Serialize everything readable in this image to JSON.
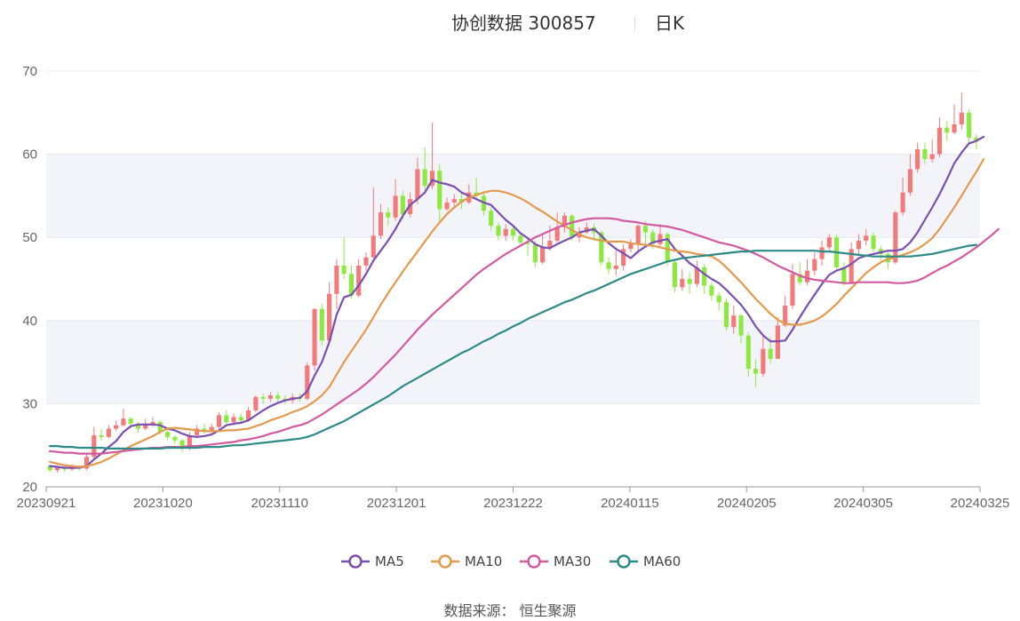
{
  "title": {
    "main": "协创数据 300857",
    "period": "日K"
  },
  "source": "数据来源： 恒生聚源",
  "colors": {
    "up": "#f47a7a",
    "down": "#8ee842",
    "MA5": "#7b4fb0",
    "MA10": "#e39a4e",
    "MA30": "#d25aa0",
    "MA60": "#2e8a87",
    "band": "#f3f4fa",
    "axis": "#999999"
  },
  "chart_data": {
    "type": "candlestick",
    "ylim": [
      20,
      70
    ],
    "yticks": [
      "20",
      "30",
      "40",
      "50",
      "60",
      "70"
    ],
    "xticks": [
      "20230921",
      "20231020",
      "20231110",
      "20231201",
      "20231222",
      "20240115",
      "20240205",
      "20240305",
      "20240325"
    ],
    "candles": [
      [
        22.5,
        22.0,
        22.6,
        21.8
      ],
      [
        22.0,
        22.3,
        22.6,
        21.7
      ],
      [
        22.3,
        22.1,
        22.5,
        21.8
      ],
      [
        22.1,
        22.4,
        22.7,
        21.9
      ],
      [
        22.4,
        22.2,
        22.6,
        21.9
      ],
      [
        22.2,
        23.6,
        24.0,
        22.0
      ],
      [
        23.6,
        26.2,
        27.2,
        23.4
      ],
      [
        26.2,
        26.0,
        27.0,
        25.6
      ],
      [
        26.0,
        27.0,
        27.4,
        25.8
      ],
      [
        27.0,
        27.4,
        28.0,
        26.7
      ],
      [
        27.4,
        28.2,
        29.4,
        27.2
      ],
      [
        28.2,
        27.6,
        28.4,
        27.0
      ],
      [
        27.6,
        27.0,
        27.8,
        26.5
      ],
      [
        27.0,
        27.5,
        28.2,
        26.8
      ],
      [
        27.5,
        27.8,
        28.4,
        27.2
      ],
      [
        27.8,
        26.6,
        28.0,
        26.3
      ],
      [
        26.6,
        26.0,
        26.8,
        25.6
      ],
      [
        26.0,
        25.6,
        26.2,
        25.2
      ],
      [
        25.6,
        24.6,
        25.8,
        24.2
      ],
      [
        24.6,
        26.2,
        26.6,
        24.4
      ],
      [
        26.2,
        27.0,
        27.4,
        25.9
      ],
      [
        27.0,
        26.8,
        27.6,
        26.4
      ],
      [
        26.8,
        27.2,
        27.6,
        26.5
      ],
      [
        27.2,
        28.6,
        29.0,
        27.0
      ],
      [
        28.6,
        27.8,
        29.2,
        27.5
      ],
      [
        27.8,
        28.4,
        28.8,
        27.4
      ],
      [
        28.4,
        28.0,
        28.8,
        27.6
      ],
      [
        28.0,
        29.2,
        29.6,
        27.8
      ],
      [
        29.2,
        30.8,
        31.0,
        29.0
      ],
      [
        30.8,
        30.6,
        31.2,
        30.0
      ],
      [
        30.6,
        31.0,
        31.4,
        30.2
      ],
      [
        31.0,
        30.6,
        31.4,
        30.2
      ],
      [
        30.6,
        30.4,
        31.0,
        30.0
      ],
      [
        30.4,
        30.8,
        31.2,
        30.0
      ],
      [
        30.8,
        30.6,
        31.2,
        30.2
      ],
      [
        30.6,
        34.6,
        35.0,
        30.4
      ],
      [
        34.6,
        41.4,
        41.4,
        34.0
      ],
      [
        41.4,
        37.6,
        42.0,
        37.0
      ],
      [
        37.6,
        43.2,
        44.6,
        37.2
      ],
      [
        43.2,
        46.6,
        47.4,
        41.4
      ],
      [
        46.6,
        45.6,
        50.0,
        45.0
      ],
      [
        45.6,
        43.0,
        46.6,
        42.6
      ],
      [
        43.0,
        46.6,
        47.4,
        42.8
      ],
      [
        46.6,
        47.6,
        48.2,
        46.0
      ],
      [
        47.6,
        50.2,
        56.0,
        47.0
      ],
      [
        50.2,
        53.0,
        54.0,
        49.8
      ],
      [
        53.0,
        52.4,
        53.6,
        51.4
      ],
      [
        52.4,
        55.0,
        57.0,
        52.0
      ],
      [
        55.0,
        52.8,
        55.6,
        52.2
      ],
      [
        52.8,
        54.6,
        55.4,
        52.4
      ],
      [
        54.6,
        58.2,
        59.6,
        54.0
      ],
      [
        58.2,
        56.2,
        60.8,
        55.6
      ],
      [
        56.2,
        58.0,
        63.8,
        55.8
      ],
      [
        58.0,
        53.4,
        58.8,
        51.6
      ],
      [
        53.4,
        54.2,
        54.8,
        53.2
      ],
      [
        54.2,
        54.6,
        55.2,
        53.8
      ],
      [
        54.6,
        54.2,
        55.4,
        53.4
      ],
      [
        54.2,
        55.4,
        56.4,
        54.0
      ],
      [
        55.4,
        55.0,
        57.2,
        54.6
      ],
      [
        55.0,
        53.2,
        55.6,
        52.6
      ],
      [
        53.2,
        51.4,
        53.6,
        50.8
      ],
      [
        51.4,
        50.2,
        51.8,
        49.6
      ],
      [
        50.2,
        51.0,
        51.6,
        49.6
      ],
      [
        51.0,
        50.2,
        51.4,
        49.6
      ],
      [
        50.2,
        49.4,
        50.6,
        48.8
      ],
      [
        49.4,
        49.2,
        49.8,
        47.8
      ],
      [
        49.2,
        47.0,
        49.6,
        46.4
      ],
      [
        47.0,
        48.8,
        50.4,
        46.8
      ],
      [
        48.8,
        49.6,
        51.4,
        48.4
      ],
      [
        49.6,
        51.2,
        53.0,
        49.4
      ],
      [
        51.2,
        52.6,
        53.0,
        50.6
      ],
      [
        52.6,
        50.0,
        52.8,
        49.6
      ],
      [
        50.0,
        50.6,
        51.2,
        49.4
      ],
      [
        50.6,
        51.2,
        51.8,
        50.4
      ],
      [
        51.2,
        50.6,
        51.6,
        49.6
      ],
      [
        50.6,
        47.0,
        50.8,
        46.6
      ],
      [
        47.0,
        46.2,
        47.6,
        45.6
      ],
      [
        46.2,
        46.6,
        48.4,
        45.4
      ],
      [
        46.6,
        48.6,
        49.2,
        46.0
      ],
      [
        48.6,
        49.2,
        49.8,
        48.2
      ],
      [
        49.2,
        51.4,
        51.6,
        48.0
      ],
      [
        51.4,
        50.6,
        52.0,
        49.2
      ],
      [
        50.6,
        49.2,
        51.0,
        48.6
      ],
      [
        49.2,
        50.4,
        51.6,
        48.8
      ],
      [
        50.4,
        47.0,
        50.6,
        46.6
      ],
      [
        47.0,
        44.0,
        47.4,
        43.4
      ],
      [
        44.0,
        45.0,
        46.2,
        43.6
      ],
      [
        45.0,
        44.4,
        45.8,
        43.2
      ],
      [
        44.4,
        46.4,
        47.2,
        44.0
      ],
      [
        46.4,
        44.2,
        46.8,
        43.2
      ],
      [
        44.2,
        43.0,
        44.6,
        42.4
      ],
      [
        43.0,
        42.2,
        43.4,
        41.2
      ],
      [
        42.2,
        39.2,
        42.6,
        38.8
      ],
      [
        39.2,
        40.6,
        41.8,
        38.4
      ],
      [
        40.6,
        38.2,
        40.8,
        37.2
      ],
      [
        38.2,
        34.2,
        38.6,
        33.2
      ],
      [
        34.2,
        33.6,
        35.4,
        32.0
      ],
      [
        33.6,
        36.6,
        38.2,
        33.2
      ],
      [
        36.6,
        35.4,
        38.0,
        34.8
      ],
      [
        35.4,
        39.4,
        40.4,
        36.0
      ],
      [
        39.4,
        41.8,
        43.0,
        39.2
      ],
      [
        41.8,
        45.6,
        46.8,
        41.4
      ],
      [
        45.6,
        44.6,
        47.0,
        44.2
      ],
      [
        44.6,
        46.0,
        47.4,
        44.2
      ],
      [
        46.0,
        47.4,
        48.2,
        45.4
      ],
      [
        47.4,
        48.8,
        49.6,
        46.6
      ],
      [
        48.8,
        50.0,
        50.4,
        48.2
      ],
      [
        50.0,
        46.4,
        50.4,
        46.0
      ],
      [
        46.4,
        44.6,
        47.0,
        44.2
      ],
      [
        44.6,
        48.6,
        49.4,
        44.4
      ],
      [
        48.6,
        49.6,
        50.4,
        48.0
      ],
      [
        49.6,
        50.2,
        51.0,
        49.0
      ],
      [
        50.2,
        48.6,
        50.6,
        48.2
      ],
      [
        48.6,
        48.0,
        49.0,
        47.2
      ],
      [
        48.0,
        47.0,
        48.4,
        46.2
      ],
      [
        47.0,
        53.0,
        53.2,
        46.8
      ],
      [
        53.0,
        55.4,
        57.2,
        52.6
      ],
      [
        55.4,
        58.2,
        60.0,
        55.0
      ],
      [
        58.2,
        60.6,
        61.4,
        57.8
      ],
      [
        60.6,
        59.4,
        61.4,
        58.8
      ],
      [
        59.4,
        60.0,
        61.8,
        59.0
      ],
      [
        60.0,
        63.2,
        64.4,
        59.6
      ],
      [
        63.2,
        62.6,
        64.0,
        61.6
      ],
      [
        62.6,
        63.6,
        66.0,
        62.4
      ],
      [
        63.6,
        65.0,
        67.4,
        63.0
      ],
      [
        65.0,
        62.0,
        65.4,
        61.2
      ],
      [
        62.0,
        61.6,
        62.4,
        60.6
      ]
    ],
    "series": [
      {
        "name": "MA5",
        "values": [
          22.5,
          22.4,
          22.3,
          22.3,
          22.3,
          22.5,
          23.3,
          24.0,
          24.8,
          25.5,
          26.6,
          27.3,
          27.5,
          27.5,
          27.5,
          27.4,
          27.0,
          26.8,
          26.4,
          26.1,
          26.0,
          26.1,
          26.3,
          26.8,
          27.4,
          27.6,
          27.7,
          28.0,
          28.6,
          29.2,
          29.7,
          30.1,
          30.4,
          30.6,
          30.7,
          31.5,
          33.4,
          35.0,
          37.4,
          40.7,
          42.8,
          43.1,
          44.2,
          45.6,
          47.2,
          48.4,
          49.6,
          51.0,
          52.6,
          53.9,
          54.6,
          55.4,
          56.9,
          56.6,
          56.4,
          56.1,
          55.4,
          55.0,
          54.6,
          54.2,
          53.9,
          53.0,
          52.1,
          51.4,
          50.5,
          49.9,
          49.2,
          48.8,
          48.7,
          49.2,
          49.6,
          50.0,
          50.6,
          50.8,
          51.0,
          50.2,
          49.3,
          48.6,
          48.1,
          47.5,
          48.3,
          48.9,
          49.4,
          49.6,
          49.8,
          48.6,
          47.8,
          46.9,
          46.3,
          45.6,
          45.0,
          44.5,
          43.7,
          42.8,
          41.9,
          40.7,
          39.3,
          38.2,
          37.5,
          37.5,
          37.6,
          38.9,
          40.4,
          41.8,
          43.1,
          44.4,
          45.5,
          46.0,
          46.3,
          46.8,
          47.5,
          47.8,
          48.0,
          48.2,
          48.4,
          48.4,
          48.6,
          49.4,
          50.6,
          52.1,
          53.6,
          55.2,
          57.0,
          58.9,
          60.2,
          61.3,
          61.6,
          62.1
        ]
      },
      {
        "name": "MA10",
        "values": [
          23.0,
          22.8,
          22.6,
          22.5,
          22.4,
          22.5,
          22.7,
          23.0,
          23.4,
          23.9,
          24.4,
          24.9,
          25.3,
          25.7,
          26.1,
          26.6,
          27.0,
          27.1,
          27.0,
          26.9,
          26.8,
          26.7,
          26.7,
          26.7,
          26.8,
          26.8,
          26.9,
          27.0,
          27.3,
          27.6,
          28.0,
          28.3,
          28.6,
          29.0,
          29.3,
          29.7,
          30.3,
          31.0,
          32.0,
          33.5,
          35.0,
          36.3,
          37.6,
          38.9,
          40.4,
          41.9,
          43.3,
          44.6,
          45.9,
          47.1,
          48.3,
          49.5,
          50.7,
          51.8,
          52.8,
          53.6,
          54.3,
          54.8,
          55.1,
          55.4,
          55.6,
          55.6,
          55.4,
          55.1,
          54.7,
          54.2,
          53.6,
          53.1,
          52.5,
          51.9,
          51.4,
          50.9,
          50.4,
          50.0,
          49.8,
          49.6,
          49.5,
          49.5,
          49.5,
          49.3,
          49.2,
          49.1,
          49.0,
          48.8,
          48.6,
          48.4,
          48.3,
          48.2,
          48.0,
          47.9,
          47.7,
          47.2,
          46.4,
          45.5,
          44.6,
          43.6,
          42.6,
          41.7,
          40.8,
          40.1,
          39.6,
          39.5,
          39.5,
          39.7,
          40.0,
          40.5,
          41.2,
          42.0,
          43.0,
          43.9,
          44.8,
          45.7,
          46.4,
          47.0,
          47.4,
          47.6,
          47.9,
          48.2,
          48.6,
          49.2,
          49.9,
          51.0,
          52.3,
          53.6,
          55.0,
          56.5,
          57.9,
          59.4
        ]
      },
      {
        "name": "MA30",
        "values": [
          24.3,
          24.2,
          24.1,
          24.1,
          24.0,
          24.0,
          24.0,
          24.0,
          24.1,
          24.2,
          24.3,
          24.4,
          24.5,
          24.6,
          24.7,
          24.7,
          24.8,
          24.8,
          24.8,
          24.9,
          24.9,
          25.0,
          25.1,
          25.2,
          25.3,
          25.4,
          25.6,
          25.7,
          25.9,
          26.1,
          26.4,
          26.6,
          26.9,
          27.2,
          27.4,
          27.7,
          28.2,
          28.7,
          29.3,
          29.9,
          30.5,
          31.1,
          31.7,
          32.4,
          33.2,
          34.1,
          35.0,
          35.9,
          36.9,
          37.9,
          38.9,
          39.8,
          40.7,
          41.5,
          42.3,
          43.1,
          43.9,
          44.7,
          45.5,
          46.2,
          46.8,
          47.4,
          48.0,
          48.5,
          49.0,
          49.5,
          50.0,
          50.4,
          50.8,
          51.2,
          51.5,
          51.8,
          52.0,
          52.2,
          52.3,
          52.3,
          52.3,
          52.2,
          52.0,
          51.9,
          51.8,
          51.6,
          51.5,
          51.4,
          51.3,
          51.1,
          50.9,
          50.6,
          50.3,
          50.0,
          49.7,
          49.4,
          49.2,
          49.0,
          48.7,
          48.4,
          48.0,
          47.6,
          47.1,
          46.6,
          46.2,
          45.8,
          45.4,
          45.1,
          44.9,
          44.8,
          44.7,
          44.6,
          44.5,
          44.5,
          44.6,
          44.6,
          44.6,
          44.6,
          44.6,
          44.5,
          44.5,
          44.6,
          44.8,
          45.2,
          45.7,
          46.2,
          46.6,
          47.1,
          47.6,
          48.2,
          48.8,
          49.5,
          50.2,
          51.0
        ]
      },
      {
        "name": "MA60",
        "values": [
          24.9,
          24.9,
          24.8,
          24.8,
          24.7,
          24.7,
          24.7,
          24.7,
          24.6,
          24.6,
          24.6,
          24.6,
          24.6,
          24.6,
          24.6,
          24.6,
          24.7,
          24.7,
          24.7,
          24.7,
          24.7,
          24.8,
          24.8,
          24.8,
          24.9,
          25.0,
          25.0,
          25.1,
          25.2,
          25.3,
          25.4,
          25.5,
          25.6,
          25.7,
          25.8,
          26.0,
          26.3,
          26.7,
          27.1,
          27.5,
          27.9,
          28.4,
          28.9,
          29.4,
          29.9,
          30.4,
          30.9,
          31.5,
          32.1,
          32.6,
          33.1,
          33.6,
          34.1,
          34.6,
          35.1,
          35.6,
          36.1,
          36.5,
          37.0,
          37.5,
          37.9,
          38.4,
          38.8,
          39.3,
          39.7,
          40.2,
          40.6,
          41.0,
          41.4,
          41.8,
          42.2,
          42.5,
          42.9,
          43.3,
          43.6,
          44.0,
          44.4,
          44.8,
          45.2,
          45.6,
          45.9,
          46.2,
          46.5,
          46.8,
          47.1,
          47.3,
          47.5,
          47.6,
          47.7,
          47.8,
          47.9,
          48.0,
          48.1,
          48.2,
          48.3,
          48.3,
          48.4,
          48.4,
          48.4,
          48.4,
          48.4,
          48.4,
          48.4,
          48.4,
          48.4,
          48.3,
          48.3,
          48.2,
          48.1,
          48.0,
          47.9,
          47.8,
          47.7,
          47.7,
          47.7,
          47.7,
          47.7,
          47.7,
          47.8,
          47.9,
          48.0,
          48.2,
          48.4,
          48.6,
          48.8,
          49.0,
          49.1
        ]
      }
    ]
  },
  "legend": [
    {
      "name": "MA5"
    },
    {
      "name": "MA10"
    },
    {
      "name": "MA30"
    },
    {
      "name": "MA60"
    }
  ]
}
